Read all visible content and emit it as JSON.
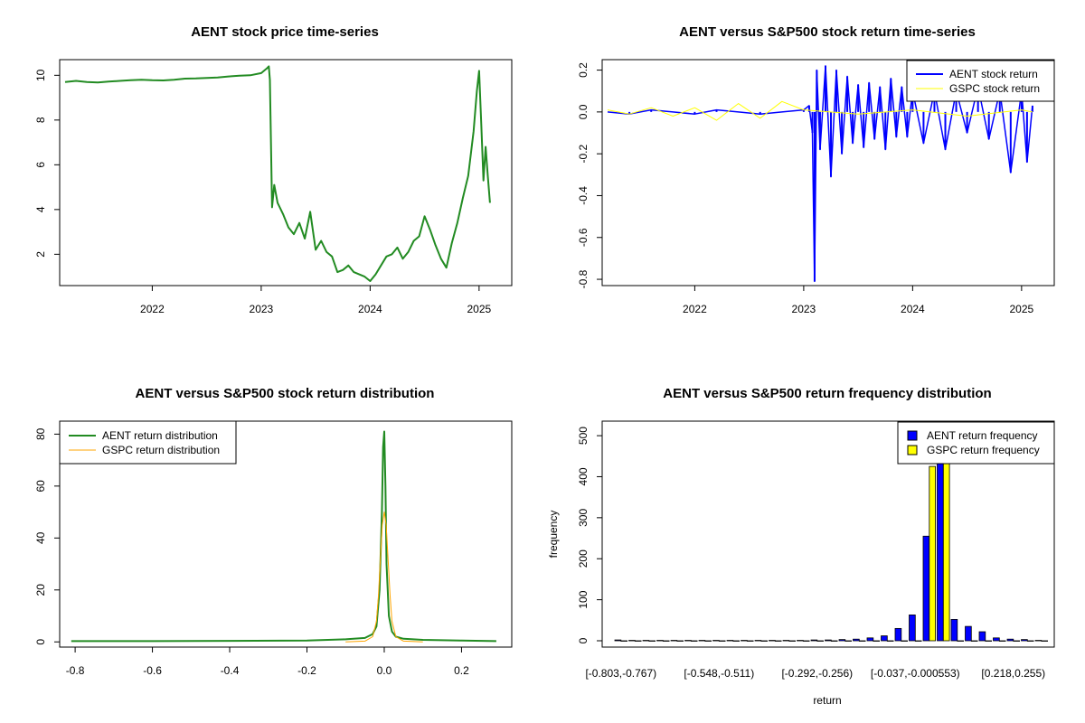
{
  "colors": {
    "price": "#228B22",
    "aent": "#0000FF",
    "gspc_line": "#FFFF00",
    "gspc_density": "#FFA500",
    "aent_density": "#228B22",
    "bar_aent": "#0000FF",
    "bar_gspc": "#FFFF00"
  },
  "chart_data": [
    {
      "type": "line",
      "title": "AENT stock price time-series",
      "xlabel": "",
      "ylabel": "",
      "xlim": [
        2021.15,
        2025.3
      ],
      "ylim": [
        0.6,
        10.7
      ],
      "x_ticks": [
        2022,
        2023,
        2024,
        2025
      ],
      "x_tick_labels": [
        "2022",
        "2023",
        "2024",
        "2025"
      ],
      "y_ticks": [
        2,
        4,
        6,
        8,
        10
      ],
      "y_tick_labels": [
        "2",
        "4",
        "6",
        "8",
        "10"
      ],
      "series": [
        {
          "x": [
            2021.2,
            2021.3,
            2021.4,
            2021.5,
            2021.6,
            2021.7,
            2021.8,
            2021.9,
            2022.0,
            2022.1,
            2022.2,
            2022.3,
            2022.4,
            2022.5,
            2022.6,
            2022.7,
            2022.8,
            2022.9,
            2023.0,
            2023.05,
            2023.07,
            2023.08,
            2023.1,
            2023.12,
            2023.15,
            2023.2,
            2023.25,
            2023.3,
            2023.35,
            2023.4,
            2023.45,
            2023.5,
            2023.55,
            2023.6,
            2023.65,
            2023.7,
            2023.75,
            2023.8,
            2023.85,
            2023.9,
            2023.95,
            2024.0,
            2024.05,
            2024.1,
            2024.15,
            2024.2,
            2024.25,
            2024.3,
            2024.35,
            2024.4,
            2024.45,
            2024.5,
            2024.55,
            2024.6,
            2024.65,
            2024.7,
            2024.75,
            2024.8,
            2024.85,
            2024.9,
            2024.95,
            2024.98,
            2025.0,
            2025.02,
            2025.04,
            2025.06,
            2025.08,
            2025.1
          ],
          "y": [
            9.7,
            9.75,
            9.7,
            9.68,
            9.72,
            9.75,
            9.78,
            9.8,
            9.78,
            9.77,
            9.8,
            9.85,
            9.86,
            9.88,
            9.9,
            9.95,
            9.98,
            10.0,
            10.1,
            10.3,
            10.4,
            9.8,
            4.1,
            5.1,
            4.3,
            3.8,
            3.2,
            2.9,
            3.4,
            2.7,
            3.9,
            2.2,
            2.6,
            2.1,
            1.9,
            1.2,
            1.3,
            1.5,
            1.2,
            1.1,
            1.0,
            0.8,
            1.1,
            1.5,
            1.9,
            2.0,
            2.3,
            1.8,
            2.1,
            2.6,
            2.8,
            3.7,
            3.1,
            2.4,
            1.8,
            1.4,
            2.5,
            3.4,
            4.5,
            5.5,
            7.5,
            9.3,
            10.2,
            7.8,
            5.3,
            6.8,
            5.5,
            4.3
          ]
        }
      ]
    },
    {
      "type": "line",
      "title": "AENT versus S&P500 stock return time-series",
      "xlabel": "",
      "ylabel": "",
      "xlim": [
        2021.15,
        2025.3
      ],
      "ylim": [
        -0.83,
        0.25
      ],
      "x_ticks": [
        2022,
        2023,
        2024,
        2025
      ],
      "x_tick_labels": [
        "2022",
        "2023",
        "2024",
        "2025"
      ],
      "y_ticks": [
        -0.8,
        -0.6,
        -0.4,
        -0.2,
        0.0,
        0.2
      ],
      "y_tick_labels": [
        "-0.8",
        "-0.6",
        "-0.4",
        "-0.2",
        "0.0",
        "0.2"
      ],
      "legend": [
        "AENT stock return",
        "GSPC stock return"
      ],
      "legend_position": "top-right",
      "series": [
        {
          "name": "AENT stock return",
          "x": [
            2021.2,
            2021.4,
            2021.6,
            2021.8,
            2022.0,
            2022.2,
            2022.4,
            2022.6,
            2022.8,
            2023.0,
            2023.05,
            2023.08,
            2023.1,
            2023.12,
            2023.15,
            2023.2,
            2023.25,
            2023.3,
            2023.35,
            2023.4,
            2023.45,
            2023.5,
            2023.55,
            2023.6,
            2023.65,
            2023.7,
            2023.75,
            2023.8,
            2023.85,
            2023.9,
            2023.95,
            2024.0,
            2024.1,
            2024.2,
            2024.3,
            2024.4,
            2024.5,
            2024.6,
            2024.7,
            2024.8,
            2024.9,
            2025.0,
            2025.05,
            2025.1
          ],
          "y": [
            0.0,
            -0.01,
            0.01,
            0.0,
            -0.01,
            0.01,
            0.0,
            -0.01,
            0.0,
            0.01,
            0.03,
            -0.1,
            -0.81,
            0.2,
            -0.18,
            0.22,
            -0.31,
            0.2,
            -0.2,
            0.17,
            -0.15,
            0.13,
            -0.17,
            0.14,
            -0.13,
            0.12,
            -0.18,
            0.16,
            -0.12,
            0.12,
            -0.12,
            0.1,
            -0.15,
            0.1,
            -0.18,
            0.1,
            -0.1,
            0.12,
            -0.13,
            0.1,
            -0.29,
            0.1,
            -0.24,
            0.03
          ]
        },
        {
          "name": "GSPC stock return",
          "x": [
            2021.2,
            2021.4,
            2021.6,
            2021.8,
            2022.0,
            2022.2,
            2022.4,
            2022.6,
            2022.8,
            2023.0,
            2023.5,
            2024.0,
            2024.5,
            2025.0,
            2025.1
          ],
          "y": [
            0.01,
            -0.01,
            0.02,
            -0.02,
            0.02,
            -0.04,
            0.04,
            -0.03,
            0.05,
            0.01,
            -0.01,
            0.01,
            -0.02,
            0.01,
            0.0
          ]
        }
      ]
    },
    {
      "type": "line",
      "title": "AENT versus S&P500 stock return distribution",
      "xlabel": "",
      "ylabel": "",
      "xlim": [
        -0.84,
        0.33
      ],
      "ylim": [
        -2,
        85
      ],
      "x_ticks": [
        -0.8,
        -0.6,
        -0.4,
        -0.2,
        0.0,
        0.2
      ],
      "x_tick_labels": [
        "-0.8",
        "-0.6",
        "-0.4",
        "-0.2",
        "0.0",
        "0.2"
      ],
      "y_ticks": [
        0,
        20,
        40,
        60,
        80
      ],
      "y_tick_labels": [
        "0",
        "20",
        "40",
        "60",
        "80"
      ],
      "legend": [
        "AENT return distribution",
        "GSPC return distribution"
      ],
      "legend_position": "top-left",
      "series": [
        {
          "name": "AENT return distribution",
          "x": [
            -0.81,
            -0.6,
            -0.4,
            -0.2,
            -0.1,
            -0.05,
            -0.03,
            -0.02,
            -0.012,
            -0.006,
            -0.003,
            0.0,
            0.003,
            0.006,
            0.012,
            0.02,
            0.03,
            0.05,
            0.1,
            0.2,
            0.29
          ],
          "y": [
            0.3,
            0.3,
            0.4,
            0.5,
            1.0,
            1.5,
            3,
            6,
            20,
            50,
            75,
            81,
            60,
            30,
            10,
            4,
            2,
            1.2,
            0.8,
            0.5,
            0.3
          ]
        },
        {
          "name": "GSPC return distribution",
          "x": [
            -0.1,
            -0.05,
            -0.03,
            -0.02,
            -0.015,
            -0.01,
            -0.005,
            0.0,
            0.005,
            0.01,
            0.015,
            0.02,
            0.03,
            0.05,
            0.1
          ],
          "y": [
            0,
            0.3,
            2,
            8,
            18,
            32,
            45,
            50,
            45,
            32,
            18,
            8,
            2,
            0.3,
            0
          ]
        }
      ]
    },
    {
      "type": "bar",
      "title": "AENT versus S&P500 return frequency distribution",
      "xlabel": "return",
      "ylabel": "frequency",
      "ylim": [
        0,
        520
      ],
      "y_ticks": [
        0,
        100,
        200,
        300,
        400,
        500
      ],
      "y_tick_labels": [
        "0",
        "100",
        "200",
        "300",
        "400",
        "500"
      ],
      "category_tick_labels": [
        "[-0.803,-0.767)",
        "[-0.548,-0.511)",
        "[-0.292,-0.256)",
        "[-0.037,-0.000553)",
        "[0.218,0.255)"
      ],
      "category_tick_positions": [
        0,
        7,
        14,
        21,
        28
      ],
      "legend": [
        "AENT return frequency",
        "GSPC return frequency"
      ],
      "legend_position": "top-right",
      "series": [
        {
          "name": "AENT return frequency",
          "values": [
            2,
            1,
            1,
            1,
            1,
            1,
            1,
            1,
            1,
            1,
            1,
            1,
            1,
            1,
            2,
            2,
            3,
            4,
            7,
            12,
            30,
            63,
            255,
            470,
            52,
            35,
            22,
            7,
            4,
            3,
            1
          ]
        },
        {
          "name": "GSPC return frequency",
          "values": [
            0,
            0,
            0,
            0,
            0,
            0,
            0,
            0,
            0,
            0,
            0,
            0,
            0,
            0,
            0,
            0,
            0,
            0,
            0,
            0,
            0,
            0,
            425,
            520,
            0,
            0,
            0,
            0,
            0,
            0,
            0
          ]
        }
      ]
    }
  ]
}
